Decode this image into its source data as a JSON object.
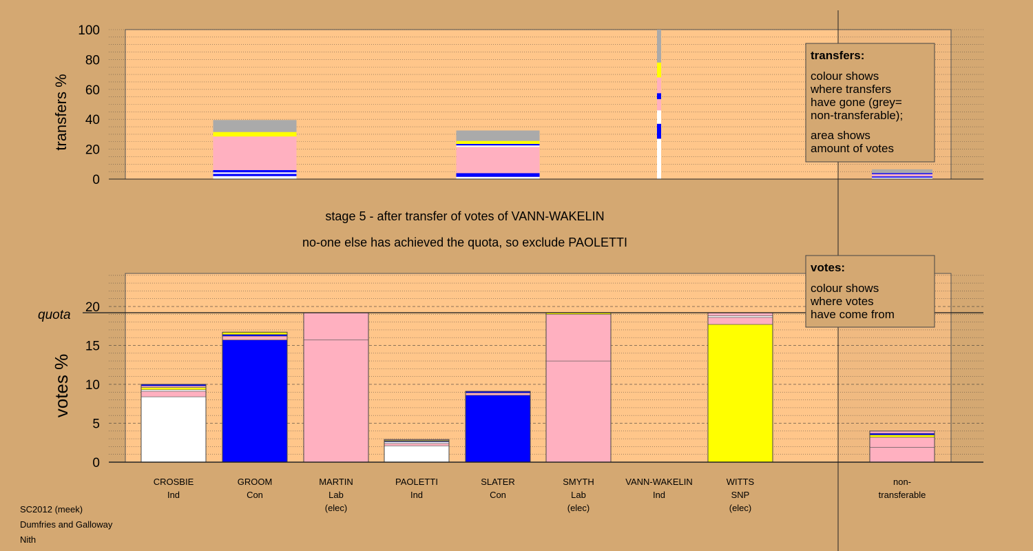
{
  "stage_line": "stage 5 - after transfer of votes of VANN-WAKELIN",
  "exclude_line": "no-one else has achieved the quota, so exclude PAOLETTI",
  "footer": {
    "line1": "SC2012 (meek)",
    "line2": "Dumfries and Galloway",
    "line3": "Nith"
  },
  "transfers_legend": {
    "title": "transfers:",
    "lines": [
      "colour shows",
      "where transfers",
      "have gone (grey=",
      "non-transferable);",
      "area shows",
      "amount of votes"
    ]
  },
  "votes_legend": {
    "title": "votes:",
    "lines": [
      "colour shows",
      "where votes",
      "have come from"
    ]
  },
  "colors": {
    "background": "#d4a872",
    "plot_area": "#ffc68a",
    "Ind": "#ffffff",
    "Con": "#0000ff",
    "Lab": "#ffb0c0",
    "SNP": "#ffff00",
    "non_transferable": "#aaaaaa"
  },
  "chart_data": [
    {
      "type": "bar",
      "id": "transfers",
      "ylabel": "transfers %",
      "ylim": [
        0,
        100
      ],
      "yticks": [
        0,
        20,
        40,
        60,
        80,
        100
      ],
      "grid": true,
      "bars": [
        {
          "candidate": "GROOM",
          "total": 39.5,
          "narrow": false,
          "segments": [
            {
              "party": "Ind",
              "value": 2
            },
            {
              "party": "Con",
              "value": 1.5
            },
            {
              "party": "Ind",
              "value": 1
            },
            {
              "party": "Con",
              "value": 1.5
            },
            {
              "party": "Lab",
              "value": 22.5
            },
            {
              "party": "SNP",
              "value": 3
            },
            {
              "party": "non_transferable",
              "value": 8
            }
          ]
        },
        {
          "candidate": "SLATER",
          "total": 32.5,
          "narrow": false,
          "segments": [
            {
              "party": "Ind",
              "value": 1.5
            },
            {
              "party": "Con",
              "value": 2.5
            },
            {
              "party": "Lab",
              "value": 17.5
            },
            {
              "party": "Ind",
              "value": 1
            },
            {
              "party": "Con",
              "value": 1
            },
            {
              "party": "SNP",
              "value": 2
            },
            {
              "party": "non_transferable",
              "value": 7
            }
          ]
        },
        {
          "candidate": "VANN-WAKELIN",
          "total": 100,
          "narrow": true,
          "segments": [
            {
              "party": "Ind",
              "value": 27
            },
            {
              "party": "Con",
              "value": 10
            },
            {
              "party": "Ind",
              "value": 9
            },
            {
              "party": "Lab",
              "value": 7.5
            },
            {
              "party": "Con",
              "value": 4
            },
            {
              "party": "Lab",
              "value": 10.5
            },
            {
              "party": "SNP",
              "value": 10
            },
            {
              "party": "non_transferable",
              "value": 22
            }
          ]
        },
        {
          "candidate": "non-transferable",
          "total": 6.5,
          "narrow": false,
          "segments": [
            {
              "party": "Ind",
              "value": 1
            },
            {
              "party": "Con",
              "value": 0.8
            },
            {
              "party": "Lab",
              "value": 1.5
            },
            {
              "party": "Con",
              "value": 0.7
            },
            {
              "party": "non_transferable",
              "value": 2.5
            }
          ]
        }
      ]
    },
    {
      "type": "bar",
      "id": "votes",
      "ylabel": "votes %",
      "ylim": [
        0,
        24
      ],
      "yticks": [
        0,
        5,
        10,
        15,
        20
      ],
      "quota": 19.2,
      "quota_label": "quota",
      "grid": true,
      "categories": [
        {
          "name": "CROSBIE",
          "party": "Ind",
          "note": ""
        },
        {
          "name": "GROOM",
          "party": "Con",
          "note": ""
        },
        {
          "name": "MARTIN",
          "party": "Lab",
          "note": "(elec)"
        },
        {
          "name": "PAOLETTI",
          "party": "Ind",
          "note": ""
        },
        {
          "name": "SLATER",
          "party": "Con",
          "note": ""
        },
        {
          "name": "SMYTH",
          "party": "Lab",
          "note": "(elec)"
        },
        {
          "name": "VANN-WAKELIN",
          "party": "Ind",
          "note": ""
        },
        {
          "name": "WITTS",
          "party": "SNP",
          "note": "(elec)"
        },
        {
          "name": "non-",
          "party": "transferable",
          "note": ""
        }
      ],
      "bars": [
        {
          "candidate": "CROSBIE",
          "total": 10.0,
          "segments": [
            {
              "party": "Ind",
              "value": 8.4
            },
            {
              "party": "Lab",
              "value": 0.7
            },
            {
              "party": "Ind",
              "value": 0.2
            },
            {
              "party": "SNP",
              "value": 0.3
            },
            {
              "party": "Lab",
              "value": 0.2
            },
            {
              "party": "Con",
              "value": 0.2
            }
          ]
        },
        {
          "candidate": "GROOM",
          "total": 16.7,
          "segments": [
            {
              "party": "Con",
              "value": 15.7
            },
            {
              "party": "Lab",
              "value": 0.5
            },
            {
              "party": "Con",
              "value": 0.2
            },
            {
              "party": "SNP",
              "value": 0.3
            }
          ]
        },
        {
          "candidate": "MARTIN",
          "total": 19.2,
          "segments": [
            {
              "party": "Lab",
              "value": 15.7,
              "split": true
            },
            {
              "party": "Lab",
              "value": 3.5
            }
          ]
        },
        {
          "candidate": "PAOLETTI",
          "total": 2.9,
          "segments": [
            {
              "party": "Ind",
              "value": 2.1
            },
            {
              "party": "Lab",
              "value": 0.3
            },
            {
              "party": "Ind",
              "value": 0.2
            },
            {
              "party": "Con",
              "value": 0.1
            },
            {
              "party": "SNP",
              "value": 0.1
            },
            {
              "party": "Lab",
              "value": 0.1
            }
          ]
        },
        {
          "candidate": "SLATER",
          "total": 9.1,
          "segments": [
            {
              "party": "Con",
              "value": 8.6
            },
            {
              "party": "Lab",
              "value": 0.3
            },
            {
              "party": "Con",
              "value": 0.2
            }
          ]
        },
        {
          "candidate": "SMYTH",
          "total": 19.2,
          "segments": [
            {
              "party": "Lab",
              "value": 13.0,
              "split": true
            },
            {
              "party": "Lab",
              "value": 6.0
            },
            {
              "party": "SNP",
              "value": 0.2
            }
          ]
        },
        {
          "candidate": "VANN-WAKELIN",
          "total": 0,
          "segments": []
        },
        {
          "candidate": "WITTS",
          "total": 19.2,
          "segments": [
            {
              "party": "SNP",
              "value": 17.7
            },
            {
              "party": "Lab",
              "value": 0.9
            },
            {
              "party": "Ind",
              "value": 0.2
            },
            {
              "party": "Lab",
              "value": 0.4
            }
          ]
        },
        {
          "candidate": "non-transferable",
          "total": 4.0,
          "segments": [
            {
              "party": "Lab",
              "value": 1.9,
              "split": true
            },
            {
              "party": "Lab",
              "value": 1.3
            },
            {
              "party": "SNP",
              "value": 0.3
            },
            {
              "party": "Con",
              "value": 0.2
            },
            {
              "party": "Lab",
              "value": 0.3
            }
          ]
        }
      ]
    }
  ]
}
